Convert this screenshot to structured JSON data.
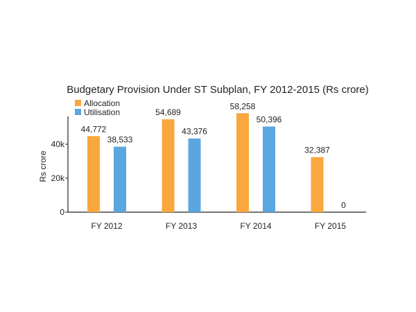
{
  "chart_data": {
    "type": "bar",
    "title": "Budgetary Provision Under ST Subplan, FY 2012-2015 (Rs crore)",
    "xlabel": "",
    "ylabel": "Rs crore",
    "ylim": [
      0,
      60000
    ],
    "yticks": [
      0,
      20000,
      40000
    ],
    "ytick_labels": [
      "0",
      "20k",
      "40k"
    ],
    "categories": [
      "FY 2012",
      "FY 2013",
      "FY 2014",
      "FY 2015"
    ],
    "series": [
      {
        "name": "Allocation",
        "color": "#F9A73E",
        "values": [
          44772,
          54689,
          58258,
          32387
        ],
        "labels": [
          "44,772",
          "54,689",
          "58,258",
          "32,387"
        ]
      },
      {
        "name": "Utilisation",
        "color": "#5AA6DE",
        "values": [
          38533,
          43376,
          50396,
          0
        ],
        "labels": [
          "38,533",
          "43,376",
          "50,396",
          "0"
        ]
      }
    ],
    "legend_position": "top-left",
    "grid": false
  }
}
